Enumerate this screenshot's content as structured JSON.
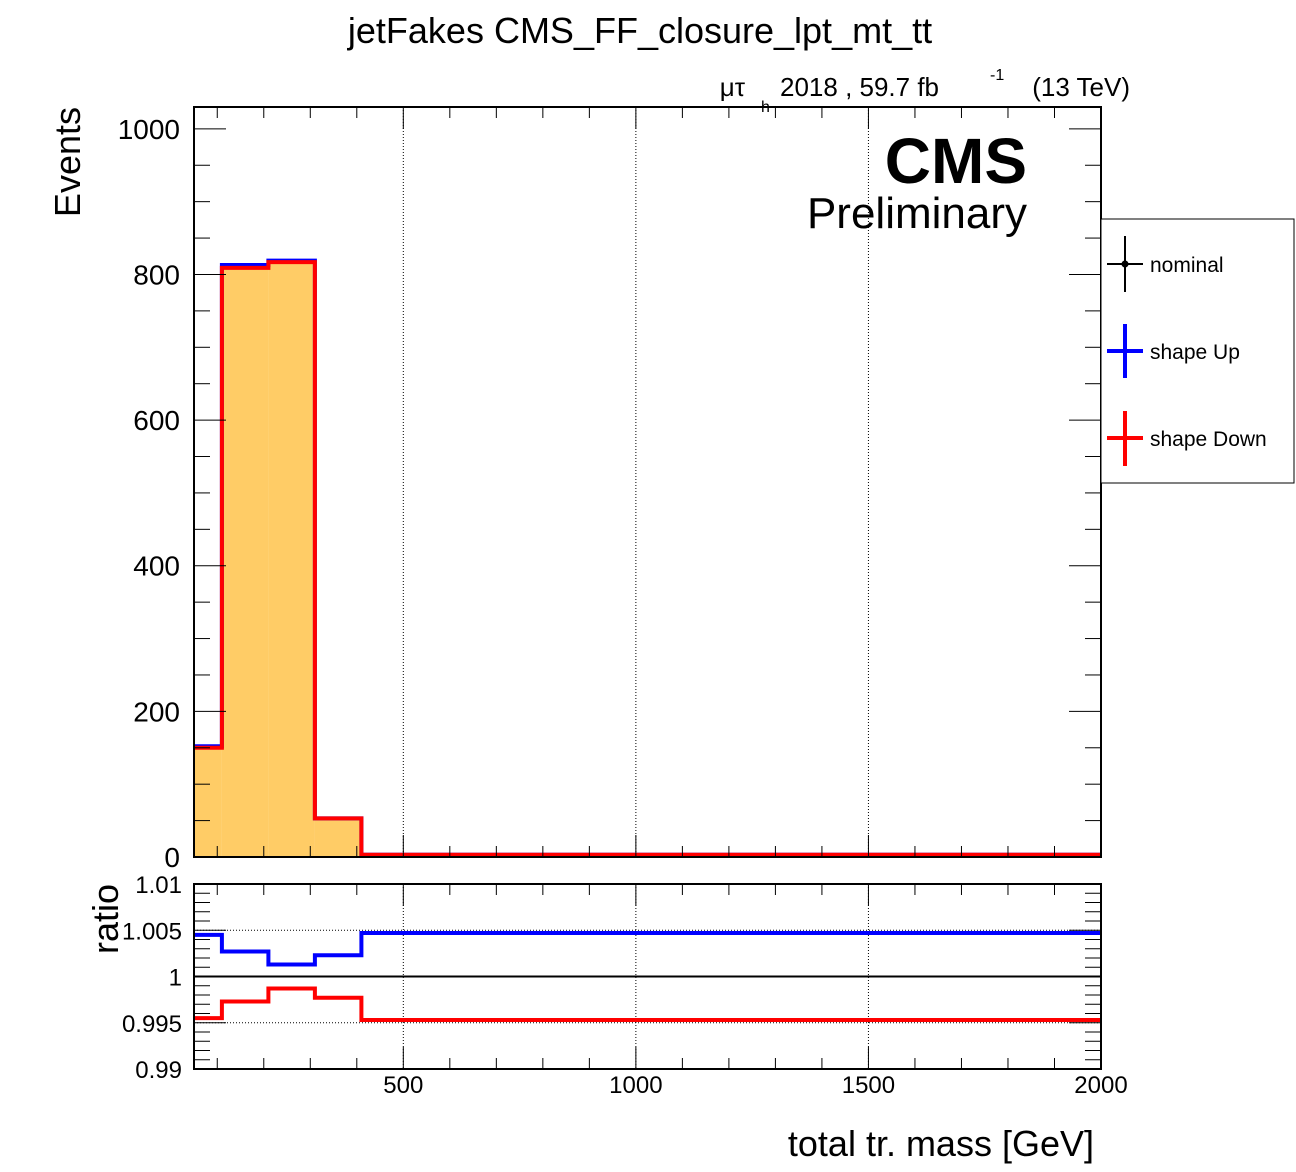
{
  "chart_data": [
    {
      "type": "histogram",
      "title": "jetFakes CMS_FF_closure_lpt_mt_tt",
      "channel_label": "μτ_h",
      "lumi_label": "2018 , 59.7 fb",
      "lumi_exponent": "-1",
      "energy_label": "(13 TeV)",
      "cms_label": "CMS",
      "preliminary_label": "Preliminary",
      "ylabel": "Events",
      "xlim": [
        50,
        2000
      ],
      "ylim": [
        0,
        1030
      ],
      "y_ticks": [
        "0",
        "200",
        "400",
        "600",
        "800",
        "1000"
      ],
      "bin_edges": [
        50,
        110,
        210,
        310,
        410,
        2000
      ],
      "nominal": [
        151,
        811,
        818,
        53,
        3
      ],
      "series": [
        {
          "name": "nominal",
          "color": "#000000",
          "values": [
            151,
            811,
            818,
            53,
            3
          ]
        },
        {
          "name": "shape Up",
          "color": "#0000ff",
          "values": [
            152,
            813,
            819,
            53,
            3
          ]
        },
        {
          "name": "shape Down",
          "color": "#ff0000",
          "values": [
            150,
            809,
            817,
            53,
            3
          ]
        }
      ],
      "fill_color": "#ffcc66",
      "legend_position": "right",
      "legend": [
        "nominal",
        "shape Up",
        "shape Down"
      ]
    },
    {
      "type": "line",
      "ylabel": "ratio",
      "xlabel": "total tr. mass [GeV]",
      "xlim": [
        50,
        2000
      ],
      "ylim": [
        0.99,
        1.01
      ],
      "x_ticks": [
        "500",
        "1000",
        "1500",
        "2000"
      ],
      "y_ticks": [
        "0.99",
        "0.995",
        "1",
        "1.005",
        "1.01"
      ],
      "bin_edges": [
        50,
        110,
        210,
        310,
        410,
        2000
      ],
      "series": [
        {
          "name": "shape Up",
          "color": "#0000ff",
          "values": [
            1.0045,
            1.0027,
            1.0013,
            1.0023,
            1.0047
          ]
        },
        {
          "name": "shape Down",
          "color": "#ff0000",
          "values": [
            0.9955,
            0.9973,
            0.9987,
            0.9977,
            0.9953
          ]
        }
      ]
    }
  ]
}
